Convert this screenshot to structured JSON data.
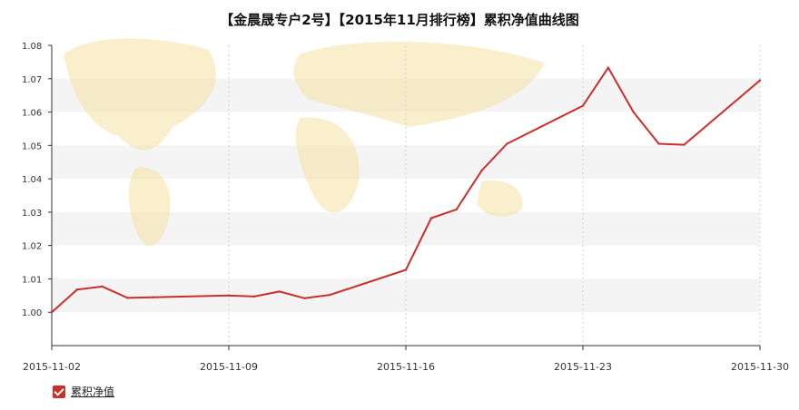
{
  "chart_data": {
    "type": "line",
    "title": "【金晨晟专户2号】【2015年11月排行榜】累积净值曲线图",
    "xlabel": "",
    "ylabel": "",
    "ylim": [
      0.99,
      1.08
    ],
    "y_ticks": [
      "1.00",
      "1.01",
      "1.02",
      "1.03",
      "1.04",
      "1.05",
      "1.06",
      "1.07",
      "1.08"
    ],
    "x_ticks": [
      "2015-11-02",
      "2015-11-09",
      "2015-11-16",
      "2015-11-23",
      "2015-11-30"
    ],
    "x": [
      "2015-11-02",
      "2015-11-03",
      "2015-11-04",
      "2015-11-05",
      "2015-11-06",
      "2015-11-09",
      "2015-11-10",
      "2015-11-11",
      "2015-11-12",
      "2015-11-13",
      "2015-11-16",
      "2015-11-17",
      "2015-11-18",
      "2015-11-19",
      "2015-11-20",
      "2015-11-23",
      "2015-11-24",
      "2015-11-25",
      "2015-11-26",
      "2015-11-27",
      "2015-11-30"
    ],
    "series": [
      {
        "name": "累积净值",
        "color": "#c9302c",
        "values": [
          1.0,
          1.0068,
          1.0077,
          1.0043,
          1.0045,
          1.005,
          1.0047,
          1.0062,
          1.0042,
          1.0052,
          1.0127,
          1.0282,
          1.0308,
          1.0425,
          1.0505,
          1.0619,
          1.0733,
          1.06,
          1.0505,
          1.0502,
          1.0695
        ]
      }
    ],
    "grid": true,
    "legend": "bottom-left"
  }
}
